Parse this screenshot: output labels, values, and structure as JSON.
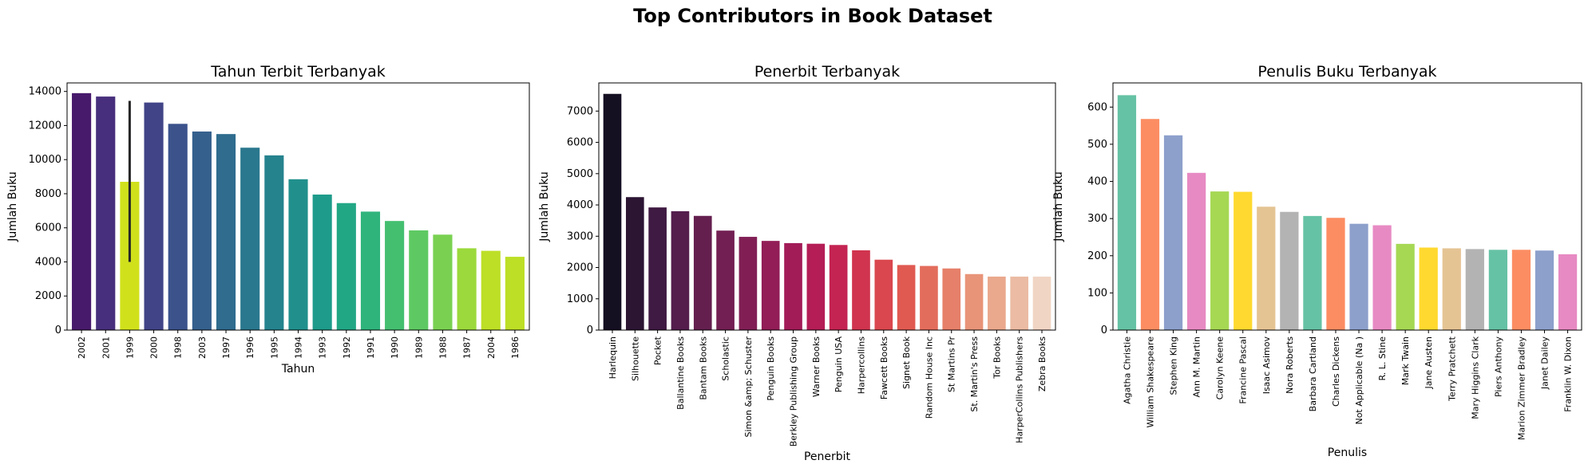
{
  "figure": {
    "suptitle": "Top Contributors in Book Dataset"
  },
  "chart_data": [
    {
      "type": "bar",
      "title": "Tahun Terbit Terbanyak",
      "xlabel": "Tahun",
      "ylabel": "Jumlah Buku",
      "ylim": [
        0,
        14500
      ],
      "yticks": [
        0,
        2000,
        4000,
        6000,
        8000,
        10000,
        12000,
        14000
      ],
      "categories": [
        "2002",
        "2001",
        "1999",
        "2000",
        "1998",
        "2003",
        "1997",
        "1996",
        "1995",
        "1994",
        "1993",
        "1992",
        "1991",
        "1990",
        "1989",
        "1988",
        "1987",
        "2004",
        "1986"
      ],
      "values": [
        13900,
        13700,
        8700,
        13350,
        12100,
        11650,
        11500,
        10700,
        10250,
        8850,
        7950,
        7450,
        6950,
        6400,
        5850,
        5600,
        4800,
        4650,
        4300
      ],
      "error_bar": {
        "category": "1999",
        "low": 4000,
        "high": 13450,
        "color": "#262626"
      },
      "colors": [
        "#481a6c",
        "#472f7d",
        "#d0e11c",
        "#414487",
        "#3b528b",
        "#35608d",
        "#2f6c8e",
        "#2a788e",
        "#25838e",
        "#21908d",
        "#1e9b8a",
        "#22a785",
        "#2fb47c",
        "#44bf70",
        "#5ec962",
        "#7ad151",
        "#9bd93c",
        "#bddf26",
        "#bddf26"
      ]
    },
    {
      "type": "bar",
      "title": "Penerbit Terbanyak",
      "xlabel": "Penerbit",
      "ylabel": "Jumlah Buku",
      "ylim": [
        0,
        7900
      ],
      "yticks": [
        0,
        1000,
        2000,
        3000,
        4000,
        5000,
        6000,
        7000
      ],
      "categories": [
        "Harlequin",
        "Silhouette",
        "Pocket",
        "Ballantine Books",
        "Bantam Books",
        "Scholastic",
        "Simon &amp; Schuster",
        "Penguin Books",
        "Berkley Publishing Group",
        "Warner Books",
        "Penguin USA",
        "Harpercollins",
        "Fawcett Books",
        "Signet Book",
        "Random House Inc",
        "St Martins Pr",
        "St. Martin's Press",
        "Tor Books",
        "HarperCollins Publishers",
        "Zebra Books"
      ],
      "values": [
        7550,
        4250,
        3920,
        3800,
        3650,
        3180,
        2980,
        2850,
        2780,
        2760,
        2720,
        2550,
        2250,
        2080,
        2050,
        1970,
        1790,
        1710,
        1710,
        1710
      ],
      "colors": [
        "#150f22",
        "#2b1533",
        "#3f1a42",
        "#541d4c",
        "#641f4f",
        "#721f53",
        "#811f55",
        "#921d57",
        "#a21c58",
        "#b41d56",
        "#c42452",
        "#d0344e",
        "#da474e",
        "#e05a52",
        "#e36d5c",
        "#e6806a",
        "#e89479",
        "#eaa88d",
        "#ebbba3",
        "#f1d5c4"
      ]
    },
    {
      "type": "bar",
      "title": "Penulis Buku Terbanyak",
      "xlabel": "Penulis",
      "ylabel": "Jumlah Buku",
      "ylim": [
        0,
        665
      ],
      "yticks": [
        0,
        100,
        200,
        300,
        400,
        500,
        600
      ],
      "categories": [
        "Agatha Christie",
        "William Shakespeare",
        "Stephen King",
        "Ann M. Martin",
        "Carolyn Keene",
        "Francine Pascal",
        "Isaac Asimov",
        "Nora Roberts",
        "Barbara Cartland",
        "Charles Dickens",
        "Not Applicable (Na )",
        "R. L. Stine",
        "Mark Twain",
        "Jane Austen",
        "Terry Pratchett",
        "Mary Higgins Clark",
        "Piers Anthony",
        "Marion Zimmer Bradley",
        "Janet Dailey",
        "Franklin W. Dixon"
      ],
      "values": [
        632,
        568,
        524,
        423,
        373,
        372,
        332,
        318,
        307,
        302,
        286,
        282,
        232,
        222,
        220,
        218,
        216,
        216,
        214,
        204
      ],
      "colors": [
        "#66c2a5",
        "#fc8d62",
        "#8da0cb",
        "#e78ac3",
        "#a6d854",
        "#ffd92f",
        "#e5c494",
        "#b3b3b3",
        "#66c2a5",
        "#fc8d62",
        "#8da0cb",
        "#e78ac3",
        "#a6d854",
        "#ffd92f",
        "#e5c494",
        "#b3b3b3",
        "#66c2a5",
        "#fc8d62",
        "#8da0cb",
        "#e78ac3"
      ]
    }
  ]
}
